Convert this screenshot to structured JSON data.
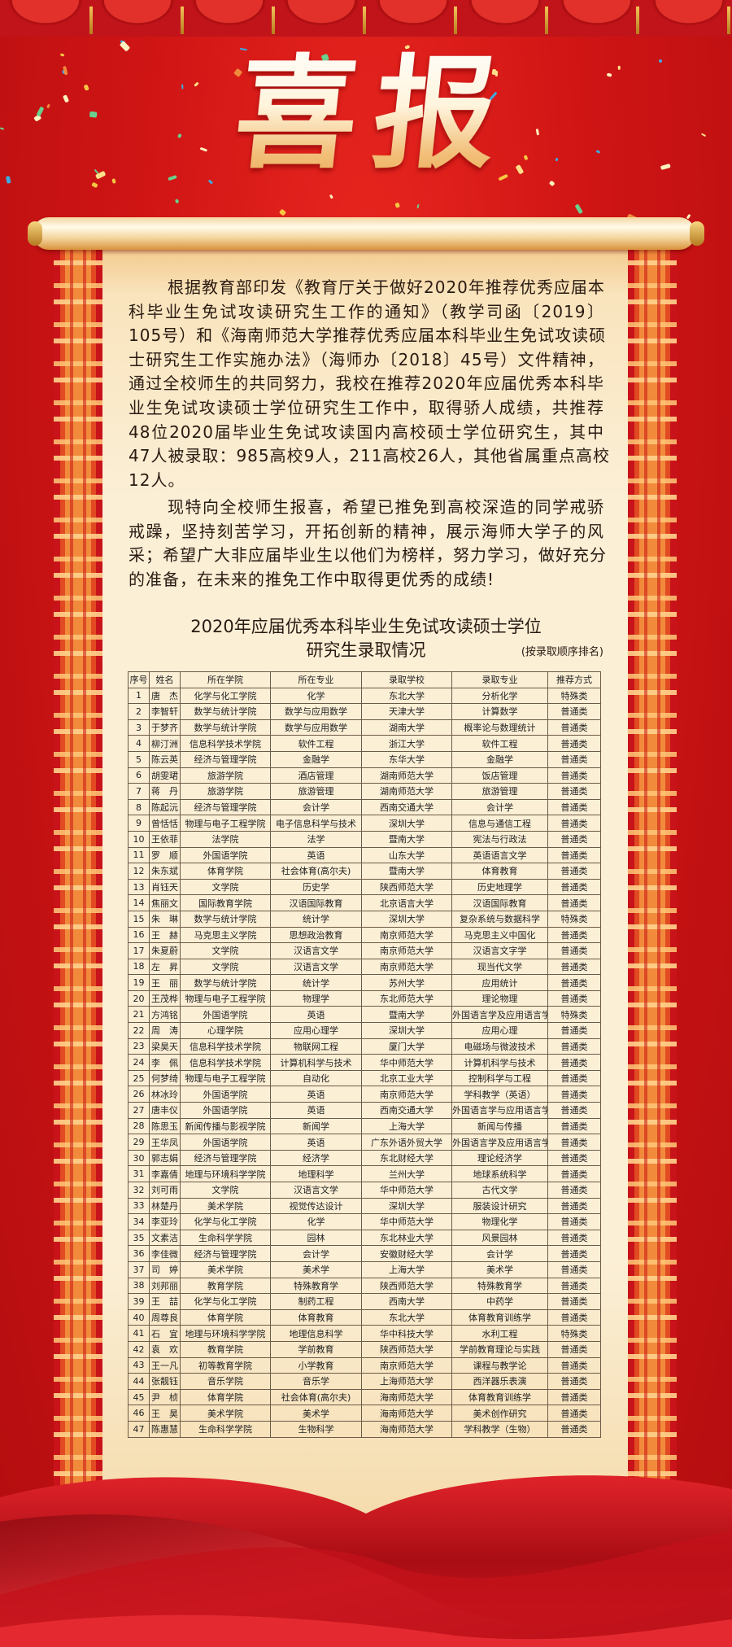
{
  "header": {
    "title": "喜报"
  },
  "paragraphs": [
    [
      "根据教育部印发《教育厅关于做好2020年推荐优秀应届本",
      "科毕业生免试攻读研究生工作的通知》（教学司函〔2019〕",
      "105号）和《海南师范大学推荐优秀应届本科毕业生免试攻读硕",
      "士研究生工作实施办法》（海师办〔2018〕45号）文件精神，",
      "通过全校师生的共同努力，我校在推荐2020年应届优秀本科毕",
      "业生免试攻读硕士学位研究生工作中，取得骄人成绩，共推荐",
      "48位2020届毕业生免试攻读国内高校硕士学位研究生，其中",
      "47人被录取：985高校9人，211高校26人，其他省属重点高校",
      "12人。"
    ],
    [
      "现特向全校师生报喜，希望已推免到高校深造的同学戒骄",
      "戒躁，坚持刻苦学习，开拓创新的精神，展示海师大学子的风",
      "采；希望广大非应届毕业生以他们为榜样，努力学习，做好充分",
      "的准备，在未来的推免工作中取得更优秀的成绩!"
    ]
  ],
  "table_title": {
    "line1": "2020年应届优秀本科毕业生免试攻读硕士学位",
    "line2": "研究生录取情况",
    "note": "(按录取顺序排名)"
  },
  "table": {
    "headers": [
      "序号",
      "姓名",
      "所在学院",
      "所在专业",
      "录取学校",
      "录取专业",
      "推荐方式"
    ],
    "rows": [
      [
        "1",
        "唐　杰",
        "化学与化工学院",
        "化学",
        "东北大学",
        "分析化学",
        "特殊类"
      ],
      [
        "2",
        "李智轩",
        "数学与统计学院",
        "数学与应用数学",
        "天津大学",
        "计算数学",
        "普通类"
      ],
      [
        "3",
        "于梦齐",
        "数学与统计学院",
        "数学与应用数学",
        "湖南大学",
        "概率论与数理统计",
        "普通类"
      ],
      [
        "4",
        "柳汀洲",
        "信息科学技术学院",
        "软件工程",
        "浙江大学",
        "软件工程",
        "普通类"
      ],
      [
        "5",
        "陈云英",
        "经济与管理学院",
        "金融学",
        "东华大学",
        "金融学",
        "普通类"
      ],
      [
        "6",
        "胡雯珺",
        "旅游学院",
        "酒店管理",
        "湖南师范大学",
        "饭店管理",
        "普通类"
      ],
      [
        "7",
        "蒋　丹",
        "旅游学院",
        "旅游管理",
        "湖南师范大学",
        "旅游管理",
        "普通类"
      ],
      [
        "8",
        "陈起沅",
        "经济与管理学院",
        "会计学",
        "西南交通大学",
        "会计学",
        "普通类"
      ],
      [
        "9",
        "曾恬恬",
        "物理与电子工程学院",
        "电子信息科学与技术",
        "深圳大学",
        "信息与通信工程",
        "普通类"
      ],
      [
        "10",
        "王依菲",
        "法学院",
        "法学",
        "暨南大学",
        "宪法与行政法",
        "普通类"
      ],
      [
        "11",
        "罗　顺",
        "外国语学院",
        "英语",
        "山东大学",
        "英语语言文学",
        "普通类"
      ],
      [
        "12",
        "朱东斌",
        "体育学院",
        "社会体育(高尔夫)",
        "暨南大学",
        "体育教育",
        "普通类"
      ],
      [
        "13",
        "肖钰天",
        "文学院",
        "历史学",
        "陕西师范大学",
        "历史地理学",
        "普通类"
      ],
      [
        "14",
        "焦丽文",
        "国际教育学院",
        "汉语国际教育",
        "北京语言大学",
        "汉语国际教育",
        "普通类"
      ],
      [
        "15",
        "朱　琳",
        "数学与统计学院",
        "统计学",
        "深圳大学",
        "复杂系统与数据科学",
        "特殊类"
      ],
      [
        "16",
        "王　赫",
        "马克思主义学院",
        "思想政治教育",
        "南京师范大学",
        "马克思主义中国化",
        "普通类"
      ],
      [
        "17",
        "朱夏蔚",
        "文学院",
        "汉语言文学",
        "南京师范大学",
        "汉语言文字学",
        "普通类"
      ],
      [
        "18",
        "左　昇",
        "文学院",
        "汉语言文学",
        "南京师范大学",
        "现当代文学",
        "普通类"
      ],
      [
        "19",
        "王　丽",
        "数学与统计学院",
        "统计学",
        "苏州大学",
        "应用统计",
        "普通类"
      ],
      [
        "20",
        "王茂桦",
        "物理与电子工程学院",
        "物理学",
        "东北师范大学",
        "理论物理",
        "普通类"
      ],
      [
        "21",
        "方鸿铭",
        "外国语学院",
        "英语",
        "暨南大学",
        "外国语言学及应用语言学",
        "特殊类"
      ],
      [
        "22",
        "周　涛",
        "心理学院",
        "应用心理学",
        "深圳大学",
        "应用心理",
        "普通类"
      ],
      [
        "23",
        "梁昊天",
        "信息科学技术学院",
        "物联网工程",
        "厦门大学",
        "电磁场与微波技术",
        "普通类"
      ],
      [
        "24",
        "李　佩",
        "信息科学技术学院",
        "计算机科学与技术",
        "华中师范大学",
        "计算机科学与技术",
        "普通类"
      ],
      [
        "25",
        "何梦绮",
        "物理与电子工程学院",
        "自动化",
        "北京工业大学",
        "控制科学与工程",
        "普通类"
      ],
      [
        "26",
        "林冰玲",
        "外国语学院",
        "英语",
        "南京师范大学",
        "学科教学（英语）",
        "普通类"
      ],
      [
        "27",
        "唐丰仪",
        "外国语学院",
        "英语",
        "西南交通大学",
        "外国语言学与应用语言学",
        "普通类"
      ],
      [
        "28",
        "陈思玉",
        "新闻传播与影视学院",
        "新闻学",
        "上海大学",
        "新闻与传播",
        "普通类"
      ],
      [
        "29",
        "王华凤",
        "外国语学院",
        "英语",
        "广东外语外贸大学",
        "外国语言学及应用语言学",
        "普通类"
      ],
      [
        "30",
        "郭志娟",
        "经济与管理学院",
        "经济学",
        "东北财经大学",
        "理论经济学",
        "普通类"
      ],
      [
        "31",
        "李嘉倩",
        "地理与环境科学学院",
        "地理科学",
        "兰州大学",
        "地球系统科学",
        "普通类"
      ],
      [
        "32",
        "刘可雨",
        "文学院",
        "汉语言文学",
        "华中师范大学",
        "古代文学",
        "普通类"
      ],
      [
        "33",
        "林楚丹",
        "美术学院",
        "视觉传达设计",
        "深圳大学",
        "服装设计研究",
        "普通类"
      ],
      [
        "34",
        "李亚玲",
        "化学与化工学院",
        "化学",
        "华中师范大学",
        "物理化学",
        "普通类"
      ],
      [
        "35",
        "文素洁",
        "生命科学学院",
        "园林",
        "东北林业大学",
        "风景园林",
        "普通类"
      ],
      [
        "36",
        "李佳微",
        "经济与管理学院",
        "会计学",
        "安徽财经大学",
        "会计学",
        "普通类"
      ],
      [
        "37",
        "司　婷",
        "美术学院",
        "美术学",
        "上海大学",
        "美术学",
        "普通类"
      ],
      [
        "38",
        "刘邦丽",
        "教育学院",
        "特殊教育学",
        "陕西师范大学",
        "特殊教育学",
        "普通类"
      ],
      [
        "39",
        "王　喆",
        "化学与化工学院",
        "制药工程",
        "西南大学",
        "中药学",
        "普通类"
      ],
      [
        "40",
        "周尊良",
        "体育学院",
        "体育教育",
        "东北大学",
        "体育教育训练学",
        "普通类"
      ],
      [
        "41",
        "石　宜",
        "地理与环境科学学院",
        "地理信息科学",
        "华中科技大学",
        "水利工程",
        "特殊类"
      ],
      [
        "42",
        "袁　欢",
        "教育学院",
        "学前教育",
        "陕西师范大学",
        "学前教育理论与实践",
        "普通类"
      ],
      [
        "43",
        "王一凡",
        "初等教育学院",
        "小学教育",
        "南京师范大学",
        "课程与教学论",
        "普通类"
      ],
      [
        "44",
        "张靓钰",
        "音乐学院",
        "音乐学",
        "上海师范大学",
        "西洋器乐表演",
        "普通类"
      ],
      [
        "45",
        "尹　桢",
        "体育学院",
        "社会体育(高尔夫)",
        "海南师范大学",
        "体育教育训练学",
        "普通类"
      ],
      [
        "46",
        "王　昊",
        "美术学院",
        "美术学",
        "海南师范大学",
        "美术创作研究",
        "普通类"
      ],
      [
        "47",
        "陈惠慧",
        "生命科学学院",
        "生物科学",
        "海南师范大学",
        "学科教学（生物）",
        "普通类"
      ]
    ]
  },
  "colors": {
    "background": "#cf1414",
    "parchment": "#fbefd6",
    "gold": "#f2c07a",
    "text": "#2a1a12"
  }
}
